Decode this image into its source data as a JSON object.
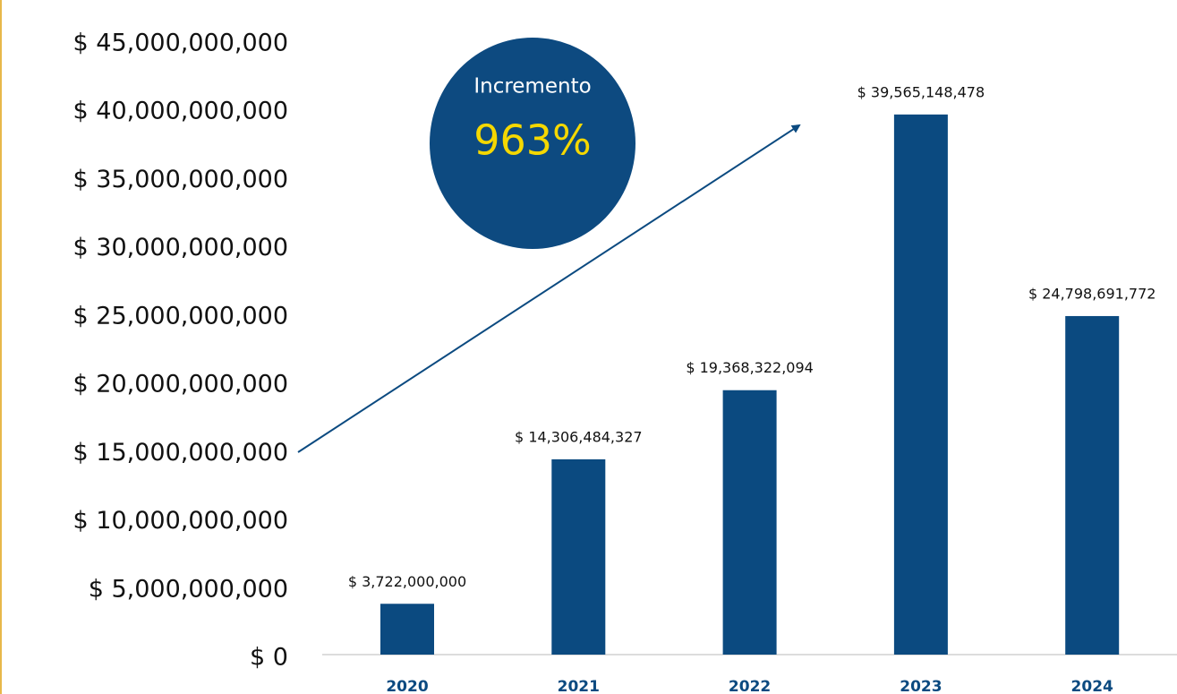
{
  "chart_data": {
    "type": "bar",
    "categories": [
      "2020",
      "2021",
      "2022",
      "2023",
      "2024"
    ],
    "values": [
      3722000000,
      14306484327,
      19368322094,
      39565148478,
      24798691772
    ],
    "value_labels": [
      "$ 3,722,000,000",
      "$ 14,306,484,327",
      "$ 19,368,322,094",
      "$ 39,565,148,478",
      "$ 24,798,691,772"
    ],
    "color": "#0b4a80",
    "ylim": [
      0,
      45000000000
    ],
    "yticks": [
      {
        "value": 0,
        "label": "$ 0"
      },
      {
        "value": 5000000000,
        "label": "$ 5,000,000,000"
      },
      {
        "value": 10000000000,
        "label": "$ 10,000,000,000"
      },
      {
        "value": 15000000000,
        "label": "$ 15,000,000,000"
      },
      {
        "value": 20000000000,
        "label": "$ 20,000,000,000"
      },
      {
        "value": 25000000000,
        "label": "$ 25,000,000,000"
      },
      {
        "value": 30000000000,
        "label": "$ 30,000,000,000"
      },
      {
        "value": 35000000000,
        "label": "$ 35,000,000,000"
      },
      {
        "value": 40000000000,
        "label": "$ 40,000,000,000"
      },
      {
        "value": 45000000000,
        "label": "$ 45,000,000,000"
      }
    ],
    "grid": false,
    "annotations": {
      "label": "Incremento",
      "value": "963%"
    }
  }
}
